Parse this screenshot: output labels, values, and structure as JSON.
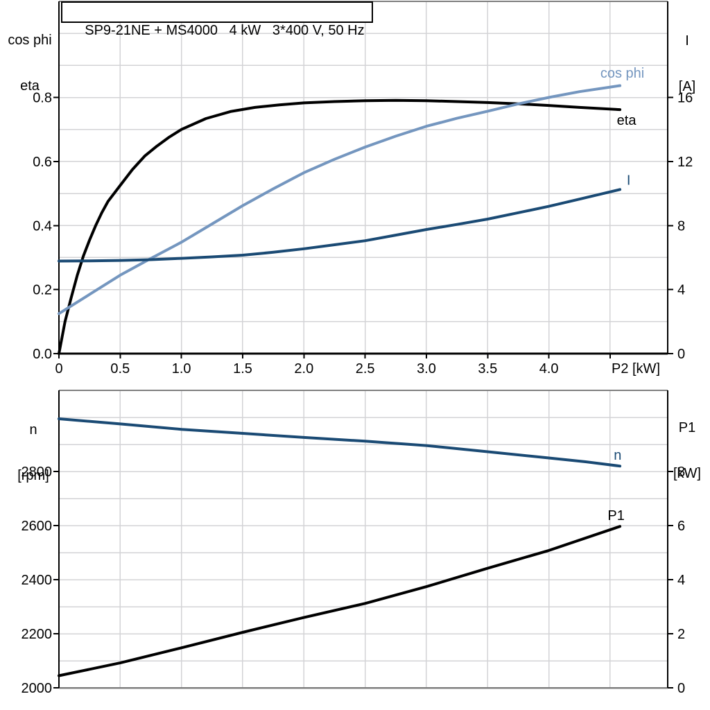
{
  "colors": {
    "black": "#000000",
    "light_blue": "#7496BF",
    "dark_blue": "#1A4A74",
    "grid": "#D3D3D6",
    "border_gray": "#7F7F7F"
  },
  "axis_headers": {
    "top_left": [
      "cos phi",
      "eta"
    ],
    "top_right": [
      "I",
      "[A]"
    ],
    "bottom_left": [
      "n",
      "[rpm]"
    ],
    "bottom_right": [
      "P1",
      "[kW]"
    ]
  },
  "chart_data": [
    {
      "type": "line",
      "title": "SP9-21NE + MS4000   4 kW   3*400 V, 50 Hz",
      "xlabel": "P2 [kW]",
      "x_range": [
        0,
        4.97
      ],
      "x_grid": [
        0.5,
        1.0,
        1.5,
        2.0,
        2.5,
        3.0,
        3.5,
        4.0,
        4.5
      ],
      "x_ticks": {
        "values": [
          0,
          0.5,
          1.0,
          1.5,
          2.0,
          2.5,
          3.0,
          3.5,
          4.0,
          4.5
        ],
        "labels": [
          "0",
          "0.5",
          "1.0",
          "1.5",
          "2.0",
          "2.5",
          "3.0",
          "3.5",
          "4.0",
          ""
        ]
      },
      "x_unit_label": "P2 [kW]",
      "y_left": {
        "label": "cos phi / eta",
        "range": [
          0,
          1.1
        ],
        "grid": [
          0.1,
          0.2,
          0.3,
          0.4,
          0.5,
          0.6,
          0.7,
          0.8,
          0.9,
          1.0
        ],
        "tick_values": [
          0,
          0.2,
          0.4,
          0.6,
          0.8
        ],
        "tick_labels": [
          "0.0",
          "0.2",
          "0.4",
          "0.6",
          "0.8"
        ]
      },
      "y_right": {
        "label": "I [A]",
        "range": [
          0,
          22
        ],
        "tick_values": [
          0,
          4,
          8,
          12,
          16
        ],
        "tick_labels": [
          "0",
          "4",
          "8",
          "12",
          "16"
        ]
      },
      "series": [
        {
          "name": "eta",
          "axis": "left",
          "color": "#000000",
          "label": "eta",
          "label_pos": [
            4.555,
            0.715
          ],
          "points": [
            [
              0,
              0
            ],
            [
              0.05,
              0.1
            ],
            [
              0.1,
              0.175
            ],
            [
              0.15,
              0.245
            ],
            [
              0.2,
              0.305
            ],
            [
              0.25,
              0.355
            ],
            [
              0.3,
              0.4
            ],
            [
              0.35,
              0.44
            ],
            [
              0.4,
              0.475
            ],
            [
              0.5,
              0.525
            ],
            [
              0.6,
              0.575
            ],
            [
              0.7,
              0.617
            ],
            [
              0.8,
              0.648
            ],
            [
              0.9,
              0.676
            ],
            [
              1.0,
              0.7
            ],
            [
              1.2,
              0.734
            ],
            [
              1.4,
              0.756
            ],
            [
              1.6,
              0.769
            ],
            [
              1.8,
              0.777
            ],
            [
              2.0,
              0.783
            ],
            [
              2.25,
              0.787
            ],
            [
              2.5,
              0.79
            ],
            [
              2.75,
              0.791
            ],
            [
              3.0,
              0.79
            ],
            [
              3.25,
              0.787
            ],
            [
              3.5,
              0.784
            ],
            [
              3.75,
              0.78
            ],
            [
              4.0,
              0.775
            ],
            [
              4.25,
              0.769
            ],
            [
              4.58,
              0.762
            ]
          ]
        },
        {
          "name": "cos phi",
          "axis": "left",
          "color": "#7496BF",
          "label": "cos phi",
          "label_pos": [
            4.42,
            0.862
          ],
          "points": [
            [
              0,
              0.125
            ],
            [
              0.25,
              0.185
            ],
            [
              0.5,
              0.245
            ],
            [
              0.75,
              0.297
            ],
            [
              1.0,
              0.348
            ],
            [
              1.25,
              0.405
            ],
            [
              1.5,
              0.462
            ],
            [
              1.75,
              0.515
            ],
            [
              2.0,
              0.565
            ],
            [
              2.25,
              0.607
            ],
            [
              2.5,
              0.645
            ],
            [
              2.75,
              0.679
            ],
            [
              3.0,
              0.71
            ],
            [
              3.25,
              0.735
            ],
            [
              3.5,
              0.757
            ],
            [
              3.75,
              0.78
            ],
            [
              4.0,
              0.8
            ],
            [
              4.25,
              0.818
            ],
            [
              4.58,
              0.837
            ]
          ]
        },
        {
          "name": "I",
          "axis": "right",
          "color": "#1A4A74",
          "label": "I",
          "label_pos": [
            4.635,
            10.55
          ],
          "points": [
            [
              0,
              5.78
            ],
            [
              0.25,
              5.79
            ],
            [
              0.5,
              5.82
            ],
            [
              0.75,
              5.87
            ],
            [
              1.0,
              5.95
            ],
            [
              1.25,
              6.04
            ],
            [
              1.5,
              6.15
            ],
            [
              1.75,
              6.33
            ],
            [
              2.0,
              6.55
            ],
            [
              2.25,
              6.8
            ],
            [
              2.5,
              7.05
            ],
            [
              2.75,
              7.4
            ],
            [
              3.0,
              7.75
            ],
            [
              3.25,
              8.07
            ],
            [
              3.5,
              8.4
            ],
            [
              3.75,
              8.8
            ],
            [
              4.0,
              9.2
            ],
            [
              4.25,
              9.65
            ],
            [
              4.58,
              10.25
            ]
          ]
        }
      ]
    },
    {
      "type": "line",
      "title": "",
      "xlabel": "",
      "x_range": [
        0,
        4.97
      ],
      "x_grid": [
        0.5,
        1.0,
        1.5,
        2.0,
        2.5,
        3.0,
        3.5,
        4.0,
        4.5
      ],
      "x_ticks": null,
      "x_unit_label": "",
      "y_left": {
        "label": "n [rpm]",
        "range": [
          2000,
          3100
        ],
        "grid": [
          2100,
          2200,
          2300,
          2400,
          2500,
          2600,
          2700,
          2800,
          2900,
          3000
        ],
        "tick_values": [
          2000,
          2200,
          2400,
          2600,
          2800
        ],
        "tick_labels": [
          "2000",
          "2200",
          "2400",
          "2600",
          "2800"
        ]
      },
      "y_right": {
        "label": "P1 [kW]",
        "range": [
          0,
          11
        ],
        "tick_values": [
          0,
          2,
          4,
          6,
          8
        ],
        "tick_labels": [
          "0",
          "2",
          "4",
          "6",
          "8"
        ]
      },
      "series": [
        {
          "name": "n",
          "axis": "left",
          "color": "#1A4A74",
          "label": "n",
          "label_pos": [
            4.53,
            2843
          ],
          "points": [
            [
              0,
              2995
            ],
            [
              0.5,
              2976
            ],
            [
              1.0,
              2956
            ],
            [
              1.5,
              2941
            ],
            [
              2.0,
              2926
            ],
            [
              2.5,
              2912
            ],
            [
              3.0,
              2896
            ],
            [
              3.5,
              2873
            ],
            [
              4.0,
              2850
            ],
            [
              4.3,
              2836
            ],
            [
              4.58,
              2820
            ]
          ]
        },
        {
          "name": "P1",
          "axis": "right",
          "color": "#000000",
          "label": "P1",
          "label_pos": [
            4.48,
            6.2
          ],
          "points": [
            [
              0,
              0.45
            ],
            [
              0.5,
              0.92
            ],
            [
              1.0,
              1.48
            ],
            [
              1.5,
              2.05
            ],
            [
              2.0,
              2.6
            ],
            [
              2.5,
              3.12
            ],
            [
              3.0,
              3.74
            ],
            [
              3.5,
              4.42
            ],
            [
              4.0,
              5.08
            ],
            [
              4.58,
              5.97
            ]
          ]
        }
      ]
    }
  ]
}
